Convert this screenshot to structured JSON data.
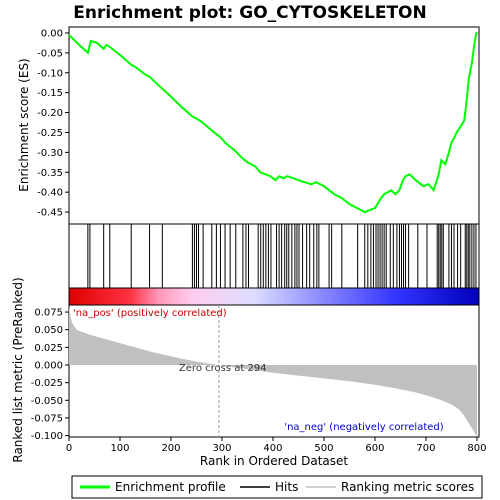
{
  "chart_data": [
    {
      "type": "line",
      "title": "Enrichment plot: GO_CYTOSKELETON",
      "ylabel": "Enrichment score (ES)",
      "xlim": [
        0,
        804
      ],
      "ylim": [
        -0.48,
        0.015
      ],
      "yticks": [
        0.0,
        -0.05,
        -0.1,
        -0.15,
        -0.2,
        -0.25,
        -0.3,
        -0.35,
        -0.4,
        -0.45
      ],
      "ytick_labels": [
        "0.00",
        "-0.05",
        "-0.10",
        "-0.15",
        "-0.20",
        "-0.25",
        "-0.30",
        "-0.35",
        "-0.40",
        "-0.45"
      ],
      "grid": false,
      "series": [
        {
          "name": "Enrichment profile",
          "color": "#00ff00",
          "x": [
            0,
            20,
            37,
            40,
            43,
            55,
            68,
            73,
            80,
            100,
            122,
            130,
            150,
            158,
            170,
            183,
            200,
            220,
            242,
            250,
            262,
            280,
            295,
            310,
            325,
            340,
            350,
            365,
            375,
            385,
            395,
            405,
            412,
            420,
            428,
            440,
            450,
            462,
            475,
            485,
            500,
            510,
            520,
            535,
            550,
            565,
            580,
            590,
            600,
            607,
            612,
            618,
            625,
            632,
            640,
            648,
            655,
            660,
            668,
            680,
            695,
            705,
            715,
            720,
            725,
            730,
            738,
            745,
            750,
            755,
            760,
            768,
            775,
            778,
            781,
            784,
            787,
            790,
            793,
            796,
            799
          ],
          "y": [
            -0.005,
            -0.03,
            -0.05,
            -0.035,
            -0.02,
            -0.025,
            -0.04,
            -0.03,
            -0.035,
            -0.055,
            -0.08,
            -0.085,
            -0.105,
            -0.11,
            -0.125,
            -0.14,
            -0.16,
            -0.185,
            -0.21,
            -0.215,
            -0.225,
            -0.245,
            -0.26,
            -0.28,
            -0.295,
            -0.315,
            -0.325,
            -0.335,
            -0.35,
            -0.355,
            -0.36,
            -0.37,
            -0.36,
            -0.365,
            -0.36,
            -0.365,
            -0.37,
            -0.375,
            -0.38,
            -0.375,
            -0.385,
            -0.395,
            -0.405,
            -0.415,
            -0.43,
            -0.44,
            -0.45,
            -0.445,
            -0.44,
            -0.425,
            -0.415,
            -0.405,
            -0.4,
            -0.395,
            -0.405,
            -0.395,
            -0.37,
            -0.36,
            -0.355,
            -0.37,
            -0.385,
            -0.38,
            -0.395,
            -0.375,
            -0.355,
            -0.32,
            -0.33,
            -0.3,
            -0.275,
            -0.265,
            -0.25,
            -0.235,
            -0.22,
            -0.19,
            -0.155,
            -0.115,
            -0.095,
            -0.075,
            -0.045,
            -0.02,
            0.003
          ]
        }
      ]
    },
    {
      "type": "scatter",
      "name": "Hits",
      "hit_color": "#000000",
      "xlim": [
        0,
        804
      ],
      "hits": [
        37,
        41,
        68,
        80,
        122,
        158,
        183,
        242,
        246,
        250,
        254,
        263,
        280,
        289,
        297,
        306,
        316,
        327,
        341,
        347,
        352,
        371,
        376,
        381,
        386,
        391,
        396,
        407,
        412,
        417,
        423,
        427,
        431,
        437,
        443,
        447,
        451,
        458,
        466,
        472,
        480,
        486,
        490,
        510,
        515,
        535,
        566,
        580,
        586,
        592,
        597,
        602,
        606,
        610,
        614,
        618,
        622,
        630,
        636,
        643,
        648,
        652,
        656,
        660,
        666,
        684,
        702,
        722,
        725,
        728,
        731,
        734,
        745,
        750,
        755,
        762,
        768,
        777,
        780,
        783,
        786,
        790,
        794,
        798
      ]
    },
    {
      "type": "heatmap",
      "name": "Ranking gradient",
      "colors": [
        "#dd0000",
        "#ff3344",
        "#ff99bb",
        "#ffccee",
        "#ddddff",
        "#8888ff",
        "#3333ff",
        "#0000bb"
      ],
      "stops": [
        0,
        0.15,
        0.22,
        0.3,
        0.45,
        0.62,
        0.8,
        1
      ]
    },
    {
      "type": "area",
      "ylabel": "Ranked list metric (PreRanked)",
      "xlabel": "Rank in Ordered Dataset",
      "xlim": [
        0,
        804
      ],
      "ylim": [
        -0.102,
        0.085
      ],
      "xticks": [
        0,
        100,
        200,
        300,
        400,
        500,
        600,
        700,
        800
      ],
      "xtick_labels": [
        "0",
        "100",
        "200",
        "300",
        "400",
        "500",
        "600",
        "700",
        "800"
      ],
      "yticks": [
        0.075,
        0.05,
        0.025,
        0.0,
        -0.025,
        -0.05,
        -0.075,
        -0.1
      ],
      "ytick_labels": [
        "0.075",
        "0.050",
        "0.025",
        "0.000",
        "-0.025",
        "-0.050",
        "-0.075",
        "-0.100"
      ],
      "fill_color": "#c0c0c0",
      "x": [
        0,
        3,
        6,
        10,
        15,
        25,
        40,
        60,
        80,
        100,
        130,
        160,
        190,
        220,
        250,
        275,
        294,
        320,
        360,
        400,
        450,
        500,
        550,
        600,
        640,
        680,
        710,
        730,
        750,
        765,
        775,
        782,
        788,
        793,
        797,
        800
      ],
      "values": [
        0.082,
        0.068,
        0.06,
        0.055,
        0.05,
        0.047,
        0.043,
        0.039,
        0.035,
        0.031,
        0.025,
        0.019,
        0.014,
        0.009,
        0.005,
        0.002,
        0.0,
        -0.003,
        -0.007,
        -0.011,
        -0.015,
        -0.019,
        -0.023,
        -0.028,
        -0.033,
        -0.039,
        -0.045,
        -0.05,
        -0.056,
        -0.063,
        -0.072,
        -0.08,
        -0.087,
        -0.093,
        -0.098,
        -0.101
      ],
      "zero_cross": 294,
      "zero_cross_label": "Zero cross at 294",
      "pos_label": "'na_pos' (positively correlated)",
      "neg_label": "'na_neg' (negatively correlated)",
      "pos_color": "#cc0000",
      "neg_color": "#0000cc"
    }
  ],
  "legend": {
    "placement": "bottom",
    "items": [
      {
        "label": "Enrichment profile",
        "color": "#00ff00"
      },
      {
        "label": "Hits",
        "color": "#000000"
      },
      {
        "label": "Ranking metric scores",
        "color": "#c0c0c0"
      }
    ]
  }
}
